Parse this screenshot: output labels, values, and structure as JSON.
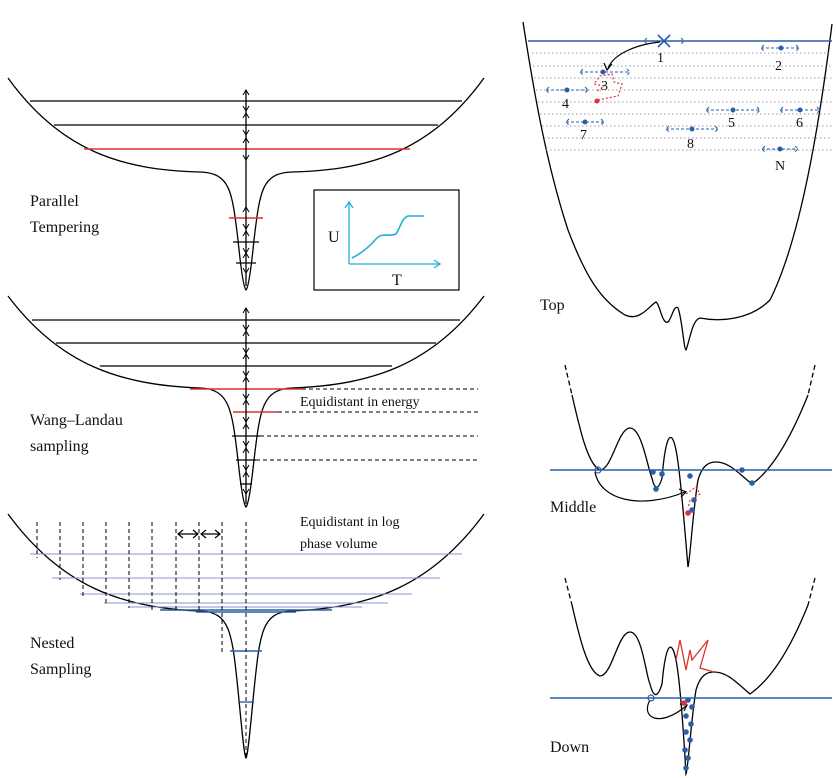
{
  "panels": {
    "parallel_tempering": {
      "line1": "Parallel",
      "line2": "Tempering"
    },
    "inset": {
      "ylabel": "U",
      "xlabel": "T"
    },
    "wang_landau": {
      "line1": "Wang–Landau",
      "line2": "sampling",
      "note": "Equidistant in energy"
    },
    "nested": {
      "line1": "Nested",
      "line2": "Sampling",
      "note_line1": "Equidistant in log",
      "note_line2": "phase volume"
    }
  },
  "right": {
    "top_label": "Top",
    "middle_label": "Middle",
    "down_label": "Down",
    "walker_labels": [
      "1",
      "2",
      "3",
      "4",
      "5",
      "6",
      "7",
      "8",
      "N"
    ]
  },
  "colors": {
    "threshold": "#2a5fa8",
    "highlight": "#e03030",
    "inset_curve": "#22b0d8"
  }
}
